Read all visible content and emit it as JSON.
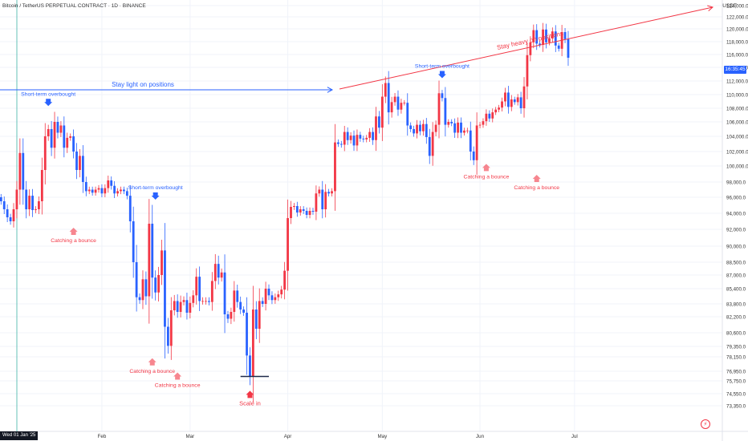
{
  "chart_data": {
    "type": "candlestick",
    "title": "Bitcoin / TetherUS PERPETUAL CONTRACT · 1D · BINANCE",
    "ylabel": "USDT",
    "ylim": [
      72350,
      124850
    ],
    "y_ticks": [
      124000,
      122000,
      120000,
      118000,
      116000,
      114000,
      112000,
      110000,
      108000,
      106000,
      104000,
      102000,
      100000,
      98000,
      96000,
      94000,
      92000,
      90000,
      88500,
      87000,
      85400,
      83800,
      82200,
      80600,
      79350,
      78150,
      76950,
      75750,
      74550,
      73350
    ],
    "y_tick_labels": [
      "124,000.0",
      "122,000.0",
      "120,000.0",
      "118,000.0",
      "116,000.0",
      "114,000.0",
      "112,000.0",
      "110,000.0",
      "108,000.0",
      "106,000.0",
      "104,000.0",
      "102,000.0",
      "100,000.0",
      "98,000.0",
      "96,000.0",
      "94,000.0",
      "92,000.0",
      "90,000.0",
      "88,500.0",
      "87,000.0",
      "85,400.0",
      "83,800.0",
      "82,200.0",
      "80,600.0",
      "79,350.0",
      "78,150.0",
      "76,950.0",
      "75,750.0",
      "74,550.0",
      "73,350.0"
    ],
    "x_labels": [
      {
        "label": "Feb",
        "i": 32
      },
      {
        "label": "Mar",
        "i": 60
      },
      {
        "label": "Apr",
        "i": 91
      },
      {
        "label": "May",
        "i": 121
      },
      {
        "label": "Jun",
        "i": 152
      },
      {
        "label": "Jul",
        "i": 182
      }
    ],
    "closes": [
      95500,
      94500,
      93500,
      93000,
      94500,
      97000,
      101800,
      97000,
      94500,
      96200,
      94400,
      94500,
      95500,
      99500,
      104000,
      105000,
      102500,
      106000,
      104500,
      105500,
      102500,
      103800,
      104000,
      102000,
      99500,
      101400,
      98000,
      96800,
      97000,
      96600,
      97000,
      97200,
      96500,
      97200,
      98200,
      97500,
      96500,
      96800,
      97000,
      96800,
      96200,
      93000,
      88500,
      84500,
      84200,
      86500,
      84600,
      92700,
      86700,
      85000,
      87000,
      89600,
      81200,
      79400,
      83000,
      84100,
      82800,
      84000,
      84200,
      82700,
      83900,
      84700,
      86800,
      84100,
      84100,
      84100,
      84000,
      86300,
      88300,
      86700,
      87300,
      82500,
      82000,
      82800,
      85200,
      84000,
      83100,
      82700,
      78300,
      76300,
      83100,
      81000,
      84100,
      83800,
      85400,
      84700,
      84200,
      84500,
      84800,
      85300,
      87500,
      93400,
      94800,
      94900,
      94100,
      94500,
      94300,
      93800,
      94300,
      94200,
      96500,
      97000,
      94500,
      96700,
      96500,
      96800,
      103200,
      103000,
      102900,
      104600,
      103500,
      104100,
      102800,
      104200,
      103700,
      103600,
      103800,
      104600,
      103500,
      106800,
      105200,
      109700,
      111700,
      107400,
      108900,
      109700,
      107800,
      108800,
      108800,
      105500,
      105000,
      104400,
      105600,
      104700,
      105700,
      103900,
      101400,
      104600,
      105600,
      110200,
      109500,
      105600,
      106000,
      105800,
      104500,
      105900,
      104500,
      104800,
      104800,
      102000,
      100800,
      105500,
      105600,
      106100,
      107200,
      106500,
      107400,
      107800,
      108100,
      109000,
      110300,
      108200,
      109300,
      108900,
      109600,
      108000,
      111200,
      115900,
      117900,
      119800,
      117700,
      117500,
      119900,
      117900,
      118500,
      119600,
      117400,
      116900,
      119500,
      118400,
      115500
    ],
    "annotations": [
      {
        "text": "Stay light on positions",
        "color": "#2962ff",
        "type": "arrow-text"
      },
      {
        "text": "Stay heavy on positions",
        "color": "#f23645",
        "type": "arrow-text"
      },
      {
        "text": "Short-term overbought",
        "color": "#2962ff",
        "i": 15,
        "price": 108200,
        "dir": "down"
      },
      {
        "text": "Short-term overbought",
        "color": "#2962ff",
        "i": 49,
        "price": 95600,
        "dir": "down"
      },
      {
        "text": "Short-term overbought",
        "color": "#2962ff",
        "i": 140,
        "price": 112300,
        "dir": "down"
      },
      {
        "text": "Catching a bounce",
        "color": "#f23645",
        "i": 23,
        "price": 92300,
        "dir": "up"
      },
      {
        "text": "Catching a bounce",
        "color": "#f23645",
        "i": 48,
        "price": 78100,
        "dir": "up"
      },
      {
        "text": "Catching a bounce",
        "color": "#f23645",
        "i": 56,
        "price": 76900,
        "dir": "up"
      },
      {
        "text": "Catching a bounce",
        "color": "#f23645",
        "i": 154,
        "price": 100400,
        "dir": "up"
      },
      {
        "text": "Catching a bounce",
        "color": "#f23645",
        "i": 170,
        "price": 99000,
        "dir": "up"
      },
      {
        "text": "Scale in",
        "color": "#f23645",
        "i": 79,
        "price": 74900,
        "dir": "up"
      }
    ],
    "current_price_label": "16:35:45",
    "start_date_label": "Wed 01 Jan '25"
  },
  "colors": {
    "up": "#f23645",
    "down": "#2962ff",
    "grid": "#f0f3fa"
  },
  "alert_icon": "alarm-icon"
}
